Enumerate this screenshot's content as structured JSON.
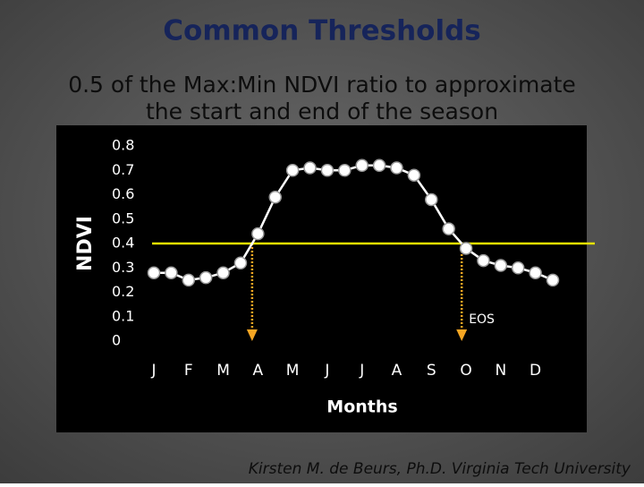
{
  "chart_data": {
    "type": "line",
    "title": "Common Thresholds",
    "subtitle": [
      "0.5 of the Max:Min NDVI ratio to approximate",
      "the start and end of the season"
    ],
    "y_label": "NDVI",
    "x_label": "Months",
    "months": [
      "J",
      "F",
      "M",
      "A",
      "M",
      "J",
      "J",
      "A",
      "S",
      "O",
      "N",
      "D"
    ],
    "values": [
      0.28,
      0.28,
      0.25,
      0.26,
      0.28,
      0.32,
      0.44,
      0.59,
      0.7,
      0.71,
      0.7,
      0.7,
      0.72,
      0.72,
      0.71,
      0.68,
      0.58,
      0.46,
      0.38,
      0.33,
      0.31,
      0.3,
      0.28,
      0.25
    ],
    "ylim": [
      0,
      0.8
    ],
    "yticks": [
      0,
      0.1,
      0.2,
      0.3,
      0.4,
      0.5,
      0.6,
      0.7,
      0.8
    ],
    "threshold": 0.4,
    "threshold_color": "#e6e200",
    "annotation": "EOS",
    "arrow_color": "#f5a623",
    "color": "#ffffff",
    "footer": "Kirsten M. de Beurs, Ph.D.  Virginia Tech University"
  }
}
